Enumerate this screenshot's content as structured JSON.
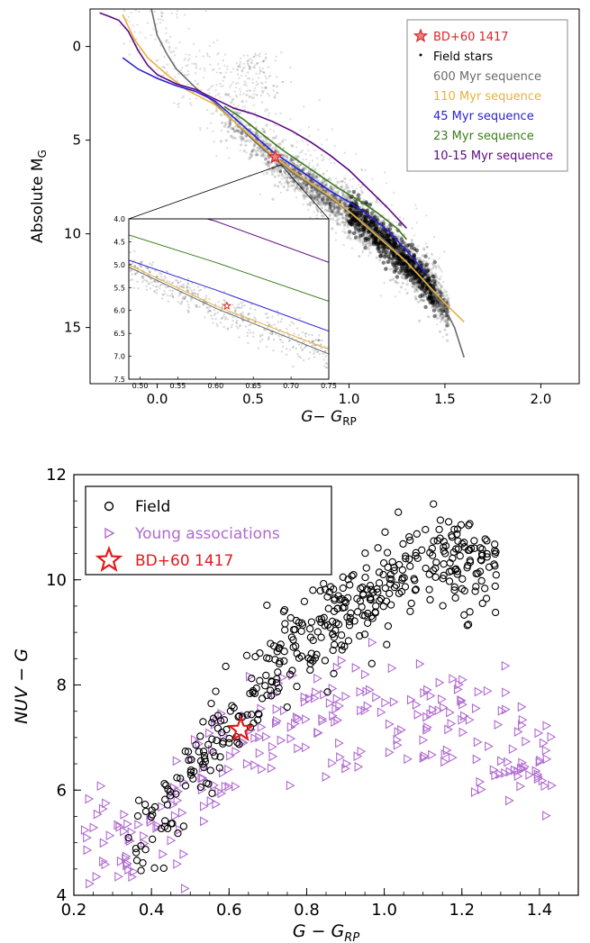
{
  "chart_data": [
    {
      "type": "scatter",
      "panel": "top",
      "xlabel_main": "G− G",
      "xlabel_sub": "RP",
      "ylabel_main": "Absolute M",
      "ylabel_sub": "G",
      "xlim": [
        -0.35,
        2.2
      ],
      "ylim": [
        18,
        -2
      ],
      "y_inverted": true,
      "xticks": [
        0.0,
        0.5,
        1.0,
        1.5,
        2.0
      ],
      "xtick_labels": [
        "0.0",
        "0.5",
        "1.0",
        "1.5",
        "2.0"
      ],
      "yticks": [
        0,
        5,
        10,
        15
      ],
      "ytick_labels": [
        "0",
        "5",
        "10",
        "15"
      ],
      "legend_position": "top-right",
      "legend": [
        {
          "label": "BD+60 1417",
          "marker": "star",
          "color": "#d62728"
        },
        {
          "label": "Field stars",
          "marker": "dot",
          "color": "#000000"
        },
        {
          "label": "600 Myr sequence",
          "marker": "line",
          "color": "#6b6b6b"
        },
        {
          "label": "110 Myr sequence",
          "marker": "line",
          "color": "#e8b13a"
        },
        {
          "label": "45 Myr sequence",
          "marker": "line",
          "color": "#2a22d8"
        },
        {
          "label": "23 Myr sequence",
          "marker": "line",
          "color": "#3a7d1a"
        },
        {
          "label": "10-15 Myr sequence",
          "marker": "line",
          "color": "#5c0a82"
        }
      ],
      "target": {
        "name": "BD+60 1417",
        "x": 0.615,
        "y": 5.9
      },
      "sequences": [
        {
          "name": "600 Myr sequence",
          "color": "#6b6b6b",
          "points": [
            [
              -0.03,
              -2.0
            ],
            [
              0.0,
              -0.6
            ],
            [
              0.05,
              0.4
            ],
            [
              0.1,
              1.2
            ],
            [
              0.2,
              2.2
            ],
            [
              0.3,
              3.0
            ],
            [
              0.4,
              4.0
            ],
            [
              0.5,
              5.0
            ],
            [
              0.6,
              5.9
            ],
            [
              0.7,
              6.7
            ],
            [
              0.8,
              7.4
            ],
            [
              0.9,
              8.1
            ],
            [
              1.0,
              8.8
            ],
            [
              1.1,
              9.6
            ],
            [
              1.2,
              10.5
            ],
            [
              1.3,
              11.5
            ],
            [
              1.4,
              12.6
            ],
            [
              1.5,
              14.0
            ],
            [
              1.55,
              15.0
            ],
            [
              1.6,
              16.6
            ]
          ]
        },
        {
          "name": "110 Myr sequence",
          "color": "#e8b13a",
          "points": [
            [
              -0.18,
              -1.7
            ],
            [
              -0.12,
              -0.4
            ],
            [
              -0.05,
              0.6
            ],
            [
              0.05,
              1.5
            ],
            [
              0.15,
              2.3
            ],
            [
              0.3,
              3.1
            ],
            [
              0.4,
              4.0
            ],
            [
              0.5,
              4.9
            ],
            [
              0.6,
              5.8
            ],
            [
              0.7,
              6.6
            ],
            [
              0.8,
              7.3
            ],
            [
              0.9,
              8.0
            ],
            [
              1.0,
              8.8
            ],
            [
              1.1,
              9.7
            ],
            [
              1.2,
              10.6
            ],
            [
              1.3,
              11.5
            ],
            [
              1.4,
              12.6
            ],
            [
              1.5,
              13.7
            ],
            [
              1.6,
              14.7
            ]
          ]
        },
        {
          "name": "45 Myr sequence",
          "color": "#2a22d8",
          "points": [
            [
              -0.18,
              0.6
            ],
            [
              -0.1,
              1.2
            ],
            [
              0.0,
              1.7
            ],
            [
              0.1,
              2.1
            ],
            [
              0.2,
              2.4
            ],
            [
              0.3,
              2.9
            ],
            [
              0.4,
              3.8
            ],
            [
              0.5,
              4.7
            ],
            [
              0.6,
              5.6
            ],
            [
              0.7,
              6.3
            ],
            [
              0.8,
              7.0
            ],
            [
              0.9,
              7.7
            ],
            [
              1.0,
              8.3
            ],
            [
              1.1,
              9.0
            ],
            [
              1.2,
              9.8
            ],
            [
              1.3,
              10.9
            ],
            [
              1.4,
              12.1
            ]
          ]
        },
        {
          "name": "23 Myr sequence",
          "color": "#3a7d1a",
          "points": [
            [
              0.35,
              3.2
            ],
            [
              0.45,
              3.9
            ],
            [
              0.55,
              4.7
            ],
            [
              0.65,
              5.5
            ],
            [
              0.75,
              6.2
            ],
            [
              0.85,
              6.9
            ],
            [
              0.95,
              7.6
            ],
            [
              1.05,
              8.2
            ],
            [
              1.15,
              8.9
            ],
            [
              1.25,
              9.7
            ],
            [
              1.3,
              10.3
            ]
          ]
        },
        {
          "name": "10-15 Myr sequence",
          "color": "#5c0a82",
          "points": [
            [
              -0.3,
              -1.8
            ],
            [
              -0.25,
              -1.6
            ],
            [
              -0.2,
              -1.4
            ],
            [
              -0.15,
              -0.8
            ],
            [
              -0.1,
              0.2
            ],
            [
              -0.05,
              1.0
            ],
            [
              0.0,
              1.5
            ],
            [
              0.1,
              2.0
            ],
            [
              0.2,
              2.3
            ],
            [
              0.3,
              2.8
            ],
            [
              0.4,
              3.3
            ],
            [
              0.5,
              3.6
            ],
            [
              0.6,
              4.0
            ],
            [
              0.7,
              4.5
            ],
            [
              0.8,
              5.1
            ],
            [
              0.9,
              5.8
            ],
            [
              1.0,
              6.6
            ],
            [
              1.1,
              7.6
            ],
            [
              1.2,
              8.6
            ],
            [
              1.3,
              9.7
            ]
          ]
        }
      ],
      "inset": {
        "xlim": [
          0.485,
          0.75
        ],
        "ylim": [
          7.5,
          4.0
        ],
        "xtick_labels": [
          "0.50",
          "0.55",
          "0.60",
          "0.65",
          "0.70",
          "0.75"
        ],
        "xticks": [
          0.5,
          0.55,
          0.6,
          0.65,
          0.7,
          0.75
        ],
        "ytick_labels": [
          "4.0",
          "4.5",
          "5.0",
          "5.5",
          "6.0",
          "6.5",
          "7.0",
          "7.5"
        ],
        "yticks": [
          4.0,
          4.5,
          5.0,
          5.5,
          6.0,
          6.5,
          7.0,
          7.5
        ],
        "lines": [
          {
            "name": "10-15 Myr sequence",
            "color": "#5c0a82",
            "points": [
              [
                0.485,
                3.55
              ],
              [
                0.6,
                4.05
              ],
              [
                0.75,
                4.95
              ]
            ]
          },
          {
            "name": "23 Myr sequence",
            "color": "#3a7d1a",
            "points": [
              [
                0.485,
                4.35
              ],
              [
                0.6,
                4.95
              ],
              [
                0.75,
                5.8
              ]
            ]
          },
          {
            "name": "45 Myr sequence",
            "color": "#2a22d8",
            "points": [
              [
                0.485,
                4.9
              ],
              [
                0.6,
                5.55
              ],
              [
                0.75,
                6.45
              ]
            ]
          },
          {
            "name": "110 Myr sequence",
            "color": "#e8b13a",
            "points": [
              [
                0.485,
                5.0
              ],
              [
                0.6,
                5.9
              ],
              [
                0.75,
                6.85
              ]
            ]
          },
          {
            "name": "600 Myr sequence",
            "color": "#6b6b6b",
            "points": [
              [
                0.485,
                5.05
              ],
              [
                0.6,
                5.95
              ],
              [
                0.75,
                6.95
              ]
            ]
          }
        ]
      }
    },
    {
      "type": "scatter",
      "panel": "bottom",
      "xlabel_main": "G − G",
      "xlabel_sub": "RP",
      "ylabel": "NUV − G",
      "xlim": [
        0.2,
        1.5
      ],
      "ylim": [
        4,
        12
      ],
      "xticks": [
        0.2,
        0.4,
        0.6,
        0.8,
        1.0,
        1.2,
        1.4
      ],
      "xtick_labels": [
        "0.2",
        "0.4",
        "0.6",
        "0.8",
        "1.0",
        "1.2",
        "1.4"
      ],
      "yticks": [
        4,
        6,
        8,
        10,
        12
      ],
      "ytick_labels": [
        "4",
        "6",
        "8",
        "10",
        "12"
      ],
      "legend_position": "top-left",
      "legend": [
        {
          "label": "Field",
          "marker": "circle-open",
          "color": "#000000"
        },
        {
          "label": "Young associations",
          "marker": "triangle-right-open",
          "color": "#b06ad0"
        },
        {
          "label": "BD+60 1417",
          "marker": "star-open",
          "color": "#e41a1c"
        }
      ],
      "target": {
        "name": "BD+60 1417",
        "x": 0.63,
        "y": 7.15
      },
      "series": [
        {
          "name": "Field",
          "color": "#000000",
          "trend": [
            [
              0.35,
              5.2
            ],
            [
              0.45,
              5.8
            ],
            [
              0.55,
              6.8
            ],
            [
              0.65,
              7.8
            ],
            [
              0.75,
              8.7
            ],
            [
              0.85,
              9.2
            ],
            [
              0.95,
              9.6
            ],
            [
              1.05,
              10.2
            ],
            [
              1.15,
              10.4
            ],
            [
              1.25,
              10.2
            ]
          ],
          "count": 420
        },
        {
          "name": "Young associations",
          "color": "#b06ad0",
          "trend": [
            [
              0.25,
              5.0
            ],
            [
              0.35,
              5.0
            ],
            [
              0.45,
              5.5
            ],
            [
              0.55,
              6.4
            ],
            [
              0.65,
              7.0
            ],
            [
              0.75,
              7.3
            ],
            [
              0.85,
              7.5
            ],
            [
              0.95,
              7.5
            ],
            [
              1.05,
              7.4
            ],
            [
              1.15,
              7.3
            ],
            [
              1.25,
              7.0
            ],
            [
              1.4,
              6.6
            ]
          ],
          "count": 260
        }
      ]
    }
  ]
}
